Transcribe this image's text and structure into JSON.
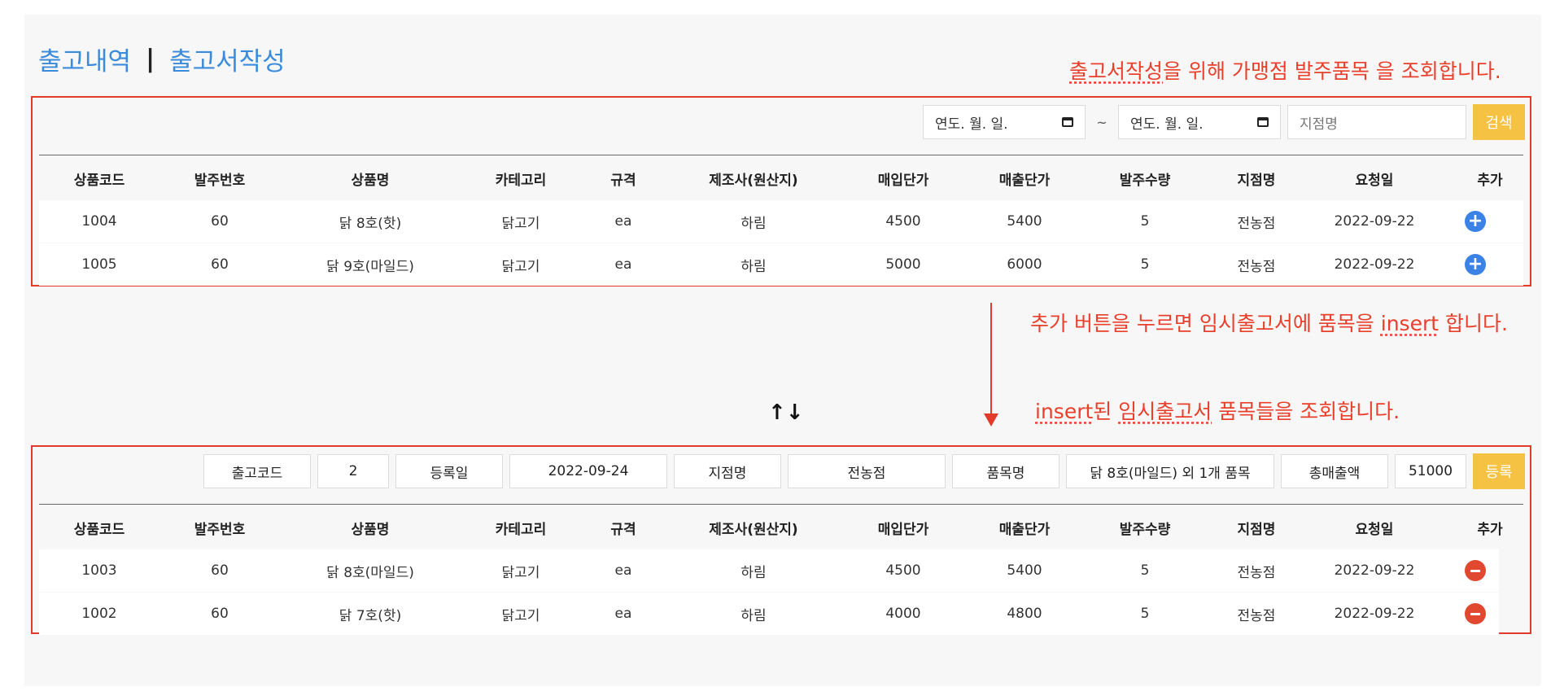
{
  "nav": {
    "history": "출고내역",
    "sep": "|",
    "create": "출고서작성"
  },
  "notes": {
    "top_link": "출고서작성",
    "top_rest": "을 위해 가맹점 발주품목 을 조회합니다.",
    "mid_pre": "추가 버튼을 누르면 임시출고서에 품목을 ",
    "mid_link": "insert",
    "mid_post": " 합니다.",
    "bottom_link1": "insert",
    "bottom_mid": "된 ",
    "bottom_link2": "임시출고서",
    "bottom_post": " 품목들을 조회합니다."
  },
  "search": {
    "date_from": "연도. 월. 일.",
    "tilde": "~",
    "date_to": "연도. 월. 일.",
    "branch_placeholder": "지점명",
    "search_label": "검색"
  },
  "columns": [
    "상품코드",
    "발주번호",
    "상품명",
    "카테고리",
    "규격",
    "제조사(원산지)",
    "매입단가",
    "매출단가",
    "발주수량",
    "지점명",
    "요청일",
    "추가"
  ],
  "order_rows": [
    [
      "1004",
      "60",
      "닭 8호(핫)",
      "닭고기",
      "ea",
      "하림",
      "4500",
      "5400",
      "5",
      "전농점",
      "2022-09-22"
    ],
    [
      "1005",
      "60",
      "닭 9호(마일드)",
      "닭고기",
      "ea",
      "하림",
      "5000",
      "6000",
      "5",
      "전농점",
      "2022-09-22"
    ]
  ],
  "swap_icon": "↑↓",
  "summary": {
    "code_label": "출고코드",
    "code_value": "2",
    "date_label": "등록일",
    "date_value": "2022-09-24",
    "branch_label": "지점명",
    "branch_value": "전농점",
    "item_label": "품목명",
    "item_value": "닭 8호(마일드) 외 1개 품목",
    "total_label": "총매출액",
    "total_value": "51000",
    "register_label": "등록"
  },
  "temp_rows": [
    [
      "1003",
      "60",
      "닭 8호(마일드)",
      "닭고기",
      "ea",
      "하림",
      "4500",
      "5400",
      "5",
      "전농점",
      "2022-09-22"
    ],
    [
      "1002",
      "60",
      "닭 7호(핫)",
      "닭고기",
      "ea",
      "하림",
      "4000",
      "4800",
      "5",
      "전농점",
      "2022-09-22"
    ]
  ],
  "icons": {
    "add": "plus-circle-icon",
    "remove": "minus-circle-icon",
    "calendar": "calendar-icon"
  },
  "colors": {
    "accent_blue": "#3b82e6",
    "annotation_red": "#e23a2b",
    "button_yellow": "#f5c243"
  }
}
